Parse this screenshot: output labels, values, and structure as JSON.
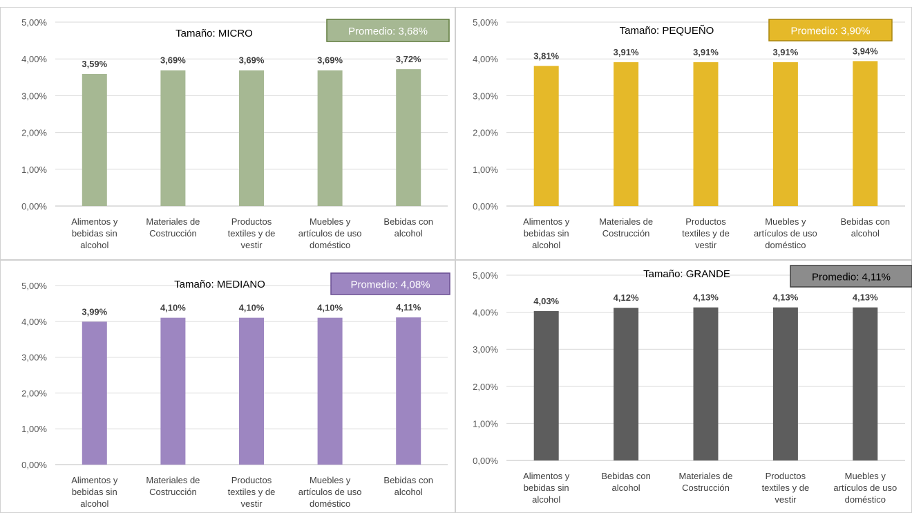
{
  "chart_data": [
    {
      "type": "bar",
      "title": "Tamaño: MICRO",
      "average_label": "Promedio: 3,68%",
      "colors": {
        "bar": "#a6b893",
        "box_fill": "#a6b893",
        "box_border": "#5f7a3c",
        "box_text": "#ffffff"
      },
      "ylim": [
        0,
        5
      ],
      "yticks": [
        "0,00%",
        "1,00%",
        "2,00%",
        "3,00%",
        "4,00%",
        "5,00%"
      ],
      "categories": [
        [
          "Alimentos y",
          "bebidas sin",
          "alcohol"
        ],
        [
          "Materiales de",
          "Costrucción"
        ],
        [
          "Productos",
          "textiles y de",
          "vestir"
        ],
        [
          "Muebles y",
          "artículos de uso",
          "doméstico"
        ],
        [
          "Bebidas con",
          "alcohol"
        ]
      ],
      "values": [
        3.59,
        3.69,
        3.69,
        3.69,
        3.72
      ],
      "value_labels": [
        "3,59%",
        "3,69%",
        "3,69%",
        "3,69%",
        "3,72%"
      ]
    },
    {
      "type": "bar",
      "title": "Tamaño: PEQUEÑO",
      "average_label": "Promedio: 3,90%",
      "colors": {
        "bar": "#e5b929",
        "box_fill": "#e5b929",
        "box_border": "#a8850f",
        "box_text": "#ffffff"
      },
      "ylim": [
        0,
        5
      ],
      "yticks": [
        "0,00%",
        "1,00%",
        "2,00%",
        "3,00%",
        "4,00%",
        "5,00%"
      ],
      "categories": [
        [
          "Alimentos y",
          "bebidas sin",
          "alcohol"
        ],
        [
          "Materiales de",
          "Costrucción"
        ],
        [
          "Productos",
          "textiles y de",
          "vestir"
        ],
        [
          "Muebles y",
          "artículos de uso",
          "doméstico"
        ],
        [
          "Bebidas con",
          "alcohol"
        ]
      ],
      "values": [
        3.81,
        3.91,
        3.91,
        3.91,
        3.94
      ],
      "value_labels": [
        "3,81%",
        "3,91%",
        "3,91%",
        "3,91%",
        "3,94%"
      ]
    },
    {
      "type": "bar",
      "title": "Tamaño: MEDIANO",
      "average_label": "Promedio: 4,08%",
      "colors": {
        "bar": "#9d86c1",
        "box_fill": "#9d86c1",
        "box_border": "#6a4f92",
        "box_text": "#ffffff"
      },
      "ylim": [
        0,
        5
      ],
      "yticks": [
        "0,00%",
        "1,00%",
        "2,00%",
        "3,00%",
        "4,00%",
        "5,00%"
      ],
      "categories": [
        [
          "Alimentos y",
          "bebidas sin",
          "alcohol"
        ],
        [
          "Materiales de",
          "Costrucción"
        ],
        [
          "Productos",
          "textiles y de",
          "vestir"
        ],
        [
          "Muebles y",
          "artículos de uso",
          "doméstico"
        ],
        [
          "Bebidas con",
          "alcohol"
        ]
      ],
      "values": [
        3.99,
        4.1,
        4.1,
        4.1,
        4.11
      ],
      "value_labels": [
        "3,99%",
        "4,10%",
        "4,10%",
        "4,10%",
        "4,11%"
      ]
    },
    {
      "type": "bar",
      "title": "Tamaño: GRANDE",
      "average_label": "Promedio: 4,11%",
      "colors": {
        "bar": "#5d5d5d",
        "box_fill": "#8c8c8c",
        "box_border": "#3f3f3f",
        "box_text": "#000000"
      },
      "ylim": [
        0,
        5
      ],
      "yticks": [
        "0,00%",
        "1,00%",
        "2,00%",
        "3,00%",
        "4,00%",
        "5,00%"
      ],
      "categories": [
        [
          "Alimentos y",
          "bebidas sin",
          "alcohol"
        ],
        [
          "Bebidas con",
          "alcohol"
        ],
        [
          "Materiales de",
          "Costrucción"
        ],
        [
          "Productos",
          "textiles y de",
          "vestir"
        ],
        [
          "Muebles y",
          "artículos de uso",
          "doméstico"
        ]
      ],
      "values": [
        4.03,
        4.12,
        4.13,
        4.13,
        4.13
      ],
      "value_labels": [
        "4,03%",
        "4,12%",
        "4,13%",
        "4,13%",
        "4,13%"
      ]
    }
  ]
}
